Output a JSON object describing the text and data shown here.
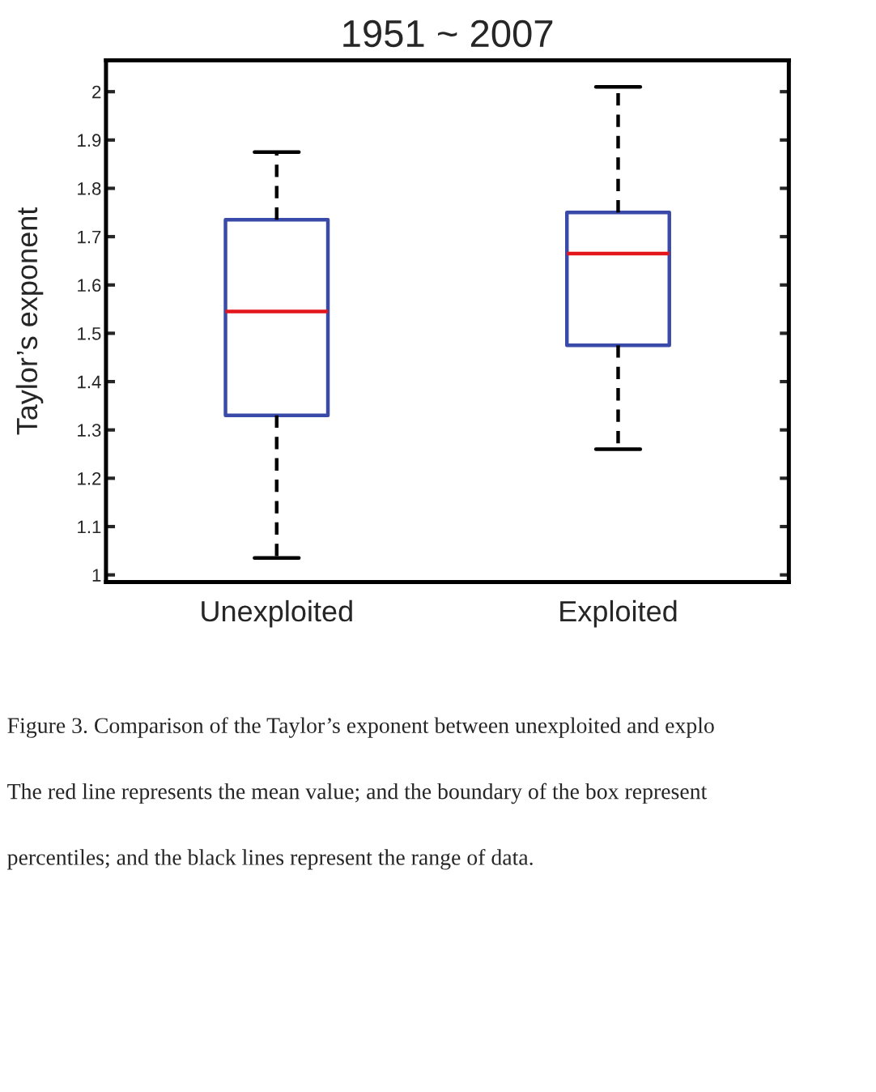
{
  "chart_data": {
    "type": "box",
    "title": "1951 ~ 2007",
    "ylabel": "Taylor’s exponent",
    "categories": [
      "Unexploited",
      "Exploited"
    ],
    "boxes": [
      {
        "low": 1.035,
        "q1": 1.33,
        "median": 1.545,
        "q3": 1.735,
        "high": 1.875
      },
      {
        "low": 1.26,
        "q1": 1.475,
        "median": 1.665,
        "q3": 1.75,
        "high": 2.01
      }
    ],
    "color": "#3a4aa8",
    "ylim": [
      0.985,
      2.065
    ],
    "yticks": [
      1,
      1.1,
      1.2,
      1.3,
      1.4,
      1.5,
      1.6,
      1.7,
      1.8,
      1.9,
      2
    ],
    "annotations": [
      "Figure 3. Comparison of the Taylor’s exponent between unexploited and explo",
      "The red line represents the mean value; and the boundary of the box represent",
      "percentiles; and the black lines represent the range of data."
    ]
  }
}
